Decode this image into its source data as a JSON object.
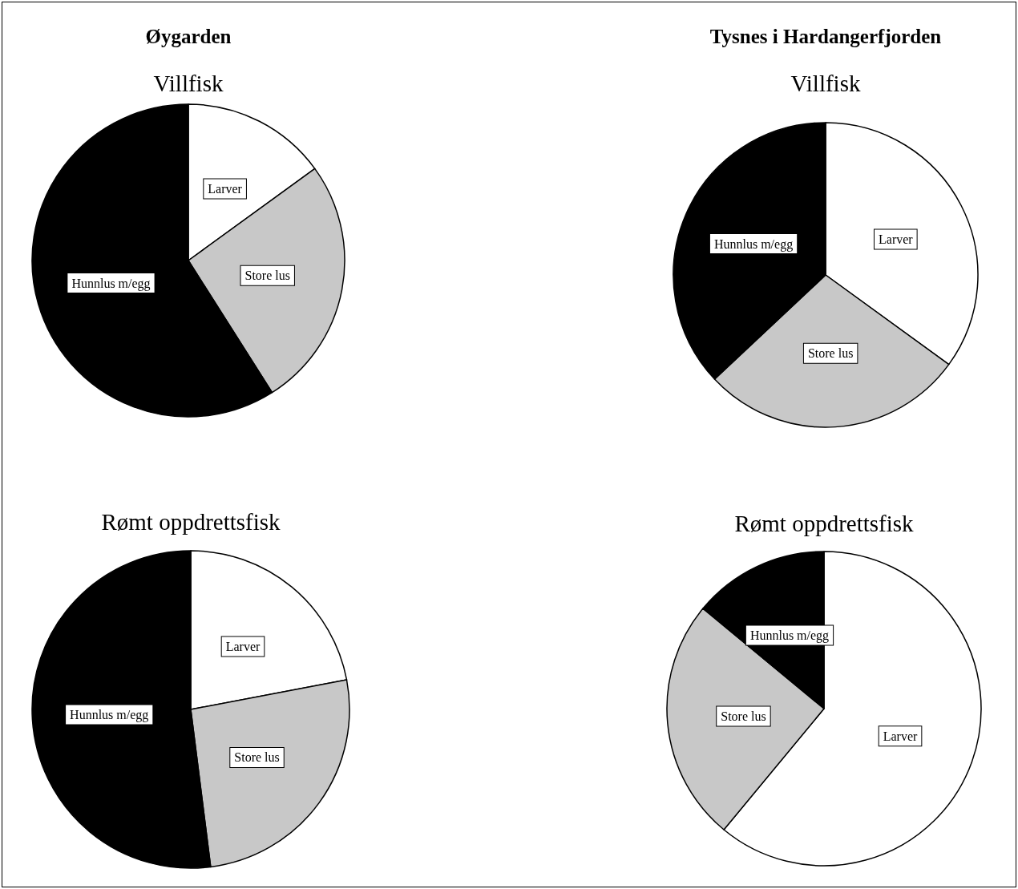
{
  "chart_data": [
    {
      "type": "pie",
      "title": "Øygarden",
      "subtitle": "Villfisk",
      "categories": [
        "Larver",
        "Store lus",
        "Hunnlus m/egg"
      ],
      "values": [
        15,
        26,
        59
      ],
      "colors": [
        "#ffffff",
        "#c8c8c8",
        "#000000"
      ]
    },
    {
      "type": "pie",
      "title": "Tysnes i Hardangerfjorden",
      "subtitle": "Villfisk",
      "categories": [
        "Larver",
        "Store lus",
        "Hunnlus m/egg"
      ],
      "values": [
        35,
        28,
        37
      ],
      "colors": [
        "#ffffff",
        "#c8c8c8",
        "#000000"
      ]
    },
    {
      "type": "pie",
      "subtitle": "Rømt oppdrettsfisk",
      "categories": [
        "Larver",
        "Store lus",
        "Hunnlus m/egg"
      ],
      "values": [
        22,
        26,
        52
      ],
      "colors": [
        "#ffffff",
        "#c8c8c8",
        "#000000"
      ]
    },
    {
      "type": "pie",
      "subtitle": "Rømt oppdrettsfisk",
      "categories": [
        "Larver",
        "Store lus",
        "Hunnlus m/egg"
      ],
      "values": [
        61,
        25,
        14
      ],
      "colors": [
        "#ffffff",
        "#c8c8c8",
        "#000000"
      ]
    }
  ]
}
